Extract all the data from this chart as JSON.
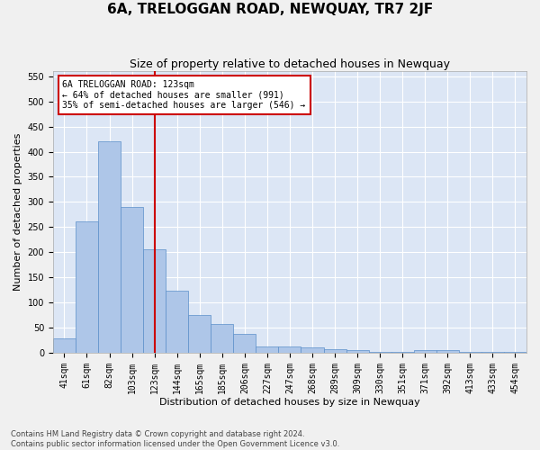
{
  "title": "6A, TRELOGGAN ROAD, NEWQUAY, TR7 2JF",
  "subtitle": "Size of property relative to detached houses in Newquay",
  "xlabel": "Distribution of detached houses by size in Newquay",
  "ylabel": "Number of detached properties",
  "footer_line1": "Contains HM Land Registry data © Crown copyright and database right 2024.",
  "footer_line2": "Contains public sector information licensed under the Open Government Licence v3.0.",
  "bar_labels": [
    "41sqm",
    "61sqm",
    "82sqm",
    "103sqm",
    "123sqm",
    "144sqm",
    "165sqm",
    "185sqm",
    "206sqm",
    "227sqm",
    "247sqm",
    "268sqm",
    "289sqm",
    "309sqm",
    "330sqm",
    "351sqm",
    "371sqm",
    "392sqm",
    "413sqm",
    "433sqm",
    "454sqm"
  ],
  "bar_values": [
    28,
    262,
    420,
    290,
    206,
    124,
    75,
    57,
    38,
    13,
    13,
    10,
    8,
    5,
    2,
    2,
    5,
    5,
    2,
    2,
    2
  ],
  "bar_color": "#aec6e8",
  "bar_edge_color": "#5b8fc9",
  "vline_x_index": 4,
  "vline_color": "#cc0000",
  "annotation_text": "6A TRELOGGAN ROAD: 123sqm\n← 64% of detached houses are smaller (991)\n35% of semi-detached houses are larger (546) →",
  "annotation_box_facecolor": "#ffffff",
  "annotation_box_edgecolor": "#cc0000",
  "ylim": [
    0,
    560
  ],
  "yticks": [
    0,
    50,
    100,
    150,
    200,
    250,
    300,
    350,
    400,
    450,
    500,
    550
  ],
  "plot_background_color": "#dce6f5",
  "figure_background_color": "#f0f0f0",
  "title_fontsize": 11,
  "subtitle_fontsize": 9,
  "ylabel_fontsize": 8,
  "xlabel_fontsize": 8,
  "tick_fontsize": 7,
  "footer_fontsize": 6,
  "figsize": [
    6.0,
    5.0
  ],
  "dpi": 100
}
